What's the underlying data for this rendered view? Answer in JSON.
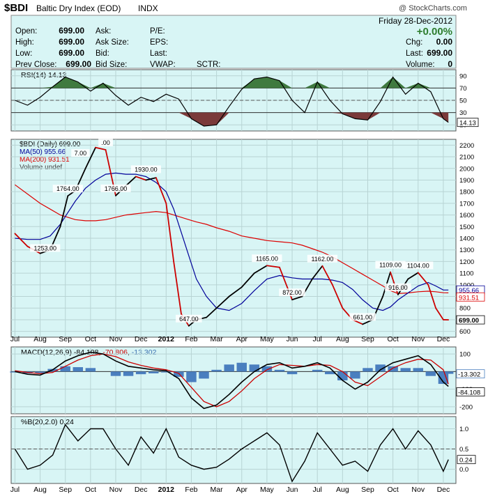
{
  "header": {
    "symbol": "$BDI",
    "name": "Baltic Dry Index (EOD)",
    "exchange": "INDX",
    "watermark": "@ StockCharts.com"
  },
  "quote": {
    "date": "Friday  28-Dec-2012",
    "change_pct": "+0.00%",
    "fields": [
      {
        "label": "Open:",
        "value": "699.00"
      },
      {
        "label": "High:",
        "value": "699.00"
      },
      {
        "label": "Low:",
        "value": "699.00"
      },
      {
        "label": "Prev Close:",
        "value": "699.00"
      }
    ],
    "mid_labels": [
      "Ask:",
      "Ask Size:",
      "Bid:",
      "Bid Size:"
    ],
    "right_labels": [
      "P/E:",
      "EPS:",
      "Last:",
      "VWAP:"
    ],
    "sctr_label": "SCTR:",
    "stats": [
      {
        "label": "Chg:",
        "value": "0.00"
      },
      {
        "label": "Last:",
        "value": "699.00"
      },
      {
        "label": "Volume:",
        "value": "0"
      }
    ]
  },
  "colors": {
    "panel_bg": "#d8f5f5",
    "price": "#000000",
    "decline": "#cc0000",
    "ma50": "#000099",
    "ma200": "#dd0000",
    "rsi_over": "#3f7a3f",
    "rsi_under": "#7a3a3a",
    "macd_hist": "#4a7fbf",
    "accent_green": "#2e7d2e"
  },
  "x_months": [
    "Jul",
    "Aug",
    "Sep",
    "Oct",
    "Nov",
    "Dec",
    "2012",
    "Feb",
    "Mar",
    "Apr",
    "May",
    "Jun",
    "Jul",
    "Aug",
    "Sep",
    "Oct",
    "Nov",
    "Dec"
  ],
  "chart_data": [
    {
      "type": "line",
      "panel": "rsi",
      "title": "RSI(14) 14.13",
      "ylim": [
        0,
        100
      ],
      "y_ticks": [
        10,
        30,
        50,
        70,
        90
      ],
      "reference_lines": [
        30,
        70
      ],
      "current_value": "14.13",
      "x": [
        0,
        0.5,
        1,
        1.5,
        2,
        2.5,
        3,
        3.5,
        4,
        4.5,
        5,
        5.5,
        6,
        6.5,
        7,
        7.5,
        8,
        8.5,
        9,
        9.5,
        10,
        10.5,
        11,
        11.5,
        12,
        12.5,
        13,
        13.5,
        14,
        14.5,
        15,
        15.5,
        16,
        16.5,
        17,
        17.2
      ],
      "series": [
        {
          "values": [
            50,
            42,
            55,
            72,
            88,
            80,
            65,
            78,
            58,
            42,
            55,
            48,
            60,
            52,
            20,
            8,
            10,
            40,
            68,
            85,
            88,
            82,
            50,
            30,
            80,
            50,
            28,
            20,
            18,
            48,
            88,
            60,
            78,
            64,
            20,
            14
          ]
        }
      ]
    },
    {
      "type": "line",
      "panel": "price",
      "title": "$BDI (Daily) 699.00",
      "ylim": [
        550,
        2250
      ],
      "y_ticks": [
        600,
        700,
        800,
        900,
        1000,
        1100,
        1200,
        1300,
        1400,
        1500,
        1600,
        1700,
        1800,
        1900,
        2000,
        2100,
        2200
      ],
      "x": [
        0,
        0.5,
        1,
        1.4,
        1.8,
        2.1,
        2.4,
        2.8,
        3.2,
        3.6,
        4,
        4.4,
        4.8,
        5.2,
        5.6,
        6,
        6.3,
        6.6,
        6.9,
        7.2,
        7.6,
        8,
        8.5,
        9,
        9.5,
        10,
        10.5,
        11,
        11.4,
        11.8,
        12.2,
        12.6,
        13,
        13.4,
        13.8,
        14.2,
        14.6,
        14.9,
        15.2,
        15.6,
        16,
        16.4,
        16.7,
        17,
        17.2
      ],
      "series": [
        {
          "name": "$BDI (Daily) 699.00",
          "values": [
            1440,
            1330,
            1270,
            1300,
            1500,
            1764,
            1810,
            2000,
            2180,
            2160,
            1766,
            1850,
            1930,
            1900,
            1920,
            1700,
            1200,
            750,
            647,
            700,
            720,
            800,
            900,
            980,
            1100,
            1165,
            1150,
            872,
            900,
            1050,
            1162,
            1000,
            800,
            700,
            661,
            700,
            900,
            1109,
            916,
            1050,
            1104,
            1000,
            800,
            700,
            699
          ]
        },
        {
          "name": "MA(50) 955.66",
          "values": [
            1400,
            1390,
            1390,
            1420,
            1520,
            1620,
            1720,
            1830,
            1900,
            1950,
            1960,
            1950,
            1950,
            1930,
            1880,
            1800,
            1650,
            1450,
            1250,
            1050,
            900,
            800,
            780,
            840,
            950,
            1050,
            1080,
            1060,
            1050,
            1050,
            1050,
            1040,
            1020,
            960,
            870,
            800,
            780,
            810,
            870,
            930,
            990,
            1020,
            990,
            955,
            955
          ]
        },
        {
          "name": "MA(200) 931.51",
          "values": [
            1860,
            1780,
            1700,
            1650,
            1600,
            1580,
            1560,
            1550,
            1550,
            1560,
            1580,
            1600,
            1610,
            1620,
            1630,
            1620,
            1600,
            1580,
            1560,
            1540,
            1520,
            1490,
            1460,
            1420,
            1400,
            1380,
            1370,
            1360,
            1340,
            1310,
            1280,
            1240,
            1190,
            1140,
            1090,
            1040,
            990,
            950,
            925,
            930,
            940,
            945,
            940,
            932,
            931
          ]
        }
      ],
      "point_labels": [
        {
          "x": 1.2,
          "y": 1253,
          "label": "1253.00"
        },
        {
          "x": 2.1,
          "y": 1764,
          "label": "1764.00"
        },
        {
          "x": 2.6,
          "y": 2070,
          "label": "7.00"
        },
        {
          "x": 3.6,
          "y": 2160,
          "label": ".00"
        },
        {
          "x": 4,
          "y": 1766,
          "label": "1766.00"
        },
        {
          "x": 5.2,
          "y": 1930,
          "label": "1930.00"
        },
        {
          "x": 6.9,
          "y": 647,
          "label": "647.00"
        },
        {
          "x": 10,
          "y": 1165,
          "label": "1165.00"
        },
        {
          "x": 11,
          "y": 872,
          "label": "872.00"
        },
        {
          "x": 12.2,
          "y": 1162,
          "label": "1162.00"
        },
        {
          "x": 13.8,
          "y": 661,
          "label": "661.00"
        },
        {
          "x": 14.9,
          "y": 1109,
          "label": "1109.00"
        },
        {
          "x": 15.2,
          "y": 916,
          "label": "916.00"
        },
        {
          "x": 16,
          "y": 1104,
          "label": "1104.00"
        }
      ],
      "legend": [
        "$BDI (Daily) 699.00",
        "MA(50) 955.66",
        "MA(200) 931.51",
        "Volume undef"
      ],
      "right_labels": [
        {
          "value": 955.66,
          "label": "955.66"
        },
        {
          "value": 931.51,
          "label": "931.51"
        },
        {
          "value": 699,
          "label": "699.00"
        }
      ]
    },
    {
      "type": "line",
      "panel": "macd",
      "title": "MACD(12,26,9) -84.108, -70.806, -13.302",
      "ylim": [
        -240,
        140
      ],
      "y_ticks": [
        -200,
        -100,
        0,
        100
      ],
      "x": [
        0,
        0.5,
        1,
        1.5,
        2,
        2.5,
        3,
        3.5,
        4,
        4.5,
        5,
        5.5,
        6,
        6.5,
        7,
        7.5,
        8,
        8.5,
        9,
        9.5,
        10,
        10.5,
        11,
        11.5,
        12,
        12.5,
        13,
        13.5,
        14,
        14.5,
        15,
        15.5,
        16,
        16.5,
        17,
        17.2
      ],
      "series": [
        {
          "name": "MACD",
          "values": [
            0,
            -15,
            -20,
            10,
            60,
            90,
            110,
            100,
            60,
            30,
            20,
            10,
            5,
            -40,
            -150,
            -210,
            -190,
            -130,
            -60,
            0,
            40,
            50,
            20,
            30,
            50,
            20,
            -50,
            -100,
            -60,
            10,
            50,
            70,
            90,
            40,
            -60,
            -84
          ]
        },
        {
          "name": "Signal",
          "values": [
            5,
            -5,
            -12,
            -5,
            30,
            65,
            90,
            100,
            85,
            55,
            35,
            20,
            10,
            -10,
            -90,
            -170,
            -200,
            -170,
            -110,
            -40,
            10,
            40,
            35,
            30,
            40,
            35,
            0,
            -60,
            -80,
            -30,
            20,
            50,
            70,
            65,
            10,
            -71
          ]
        },
        {
          "name": "Histogram",
          "values": [
            -5,
            -10,
            -8,
            15,
            30,
            25,
            20,
            0,
            -25,
            -25,
            -15,
            -10,
            -5,
            -30,
            -60,
            -40,
            10,
            40,
            50,
            40,
            30,
            10,
            -15,
            0,
            10,
            -15,
            -50,
            -40,
            20,
            40,
            30,
            20,
            20,
            -25,
            -70,
            -13
          ]
        }
      ],
      "current_values": [
        "-13.302",
        "-84.108"
      ],
      "legend": [
        "MACD(12,26,9) -84.108",
        "-70.806",
        "-13.302"
      ]
    },
    {
      "type": "line",
      "panel": "percent_b",
      "title": "%B(20,2.0) 0.24",
      "ylim": [
        -0.35,
        1.3
      ],
      "y_ticks": [
        0.0,
        0.5,
        1.0
      ],
      "reference_lines": [
        0.5
      ],
      "current_value": "0.24",
      "x": [
        0,
        0.5,
        1,
        1.5,
        2,
        2.5,
        3,
        3.5,
        4,
        4.5,
        5,
        5.5,
        6,
        6.5,
        7,
        7.5,
        8,
        8.5,
        9,
        9.5,
        10,
        10.5,
        11,
        11.5,
        12,
        12.5,
        13,
        13.5,
        14,
        14.5,
        15,
        15.5,
        16,
        16.5,
        17,
        17.2
      ],
      "series": [
        {
          "values": [
            0.5,
            0.0,
            0.1,
            0.35,
            1.1,
            0.7,
            1.0,
            1.0,
            0.5,
            0.1,
            0.8,
            0.4,
            1.0,
            0.3,
            0.1,
            0.0,
            0.05,
            0.25,
            0.5,
            0.7,
            0.9,
            0.6,
            -0.3,
            0.2,
            0.9,
            0.5,
            0.1,
            0.2,
            -0.05,
            0.6,
            1.0,
            0.5,
            0.95,
            0.6,
            -0.05,
            0.24
          ]
        }
      ]
    }
  ]
}
